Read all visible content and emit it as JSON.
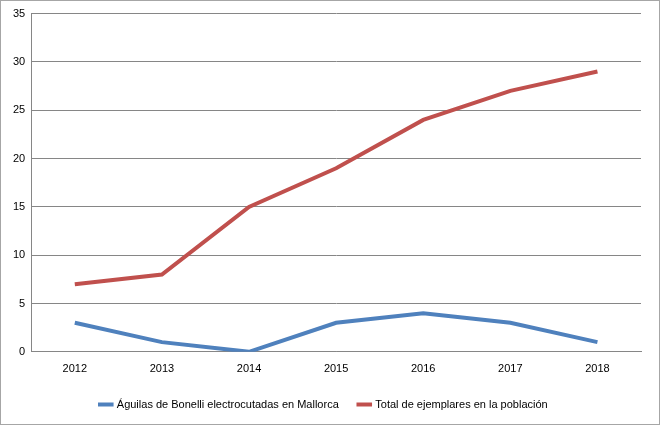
{
  "chart_data": {
    "type": "line",
    "categories": [
      "2012",
      "2013",
      "2014",
      "2015",
      "2016",
      "2017",
      "2018"
    ],
    "series": [
      {
        "name": "Águilas de Bonelli electrocutadas en Mallorca",
        "color": "#4f81bd",
        "values": [
          3,
          1,
          0,
          3,
          4,
          3,
          1
        ]
      },
      {
        "name": "Total de ejemplares en la población",
        "color": "#c0504d",
        "values": [
          7,
          8,
          15,
          19,
          24,
          27,
          29
        ]
      }
    ],
    "ylim": [
      0,
      35
    ],
    "yticks": [
      0,
      5,
      10,
      15,
      20,
      25,
      30,
      35
    ],
    "grid": true,
    "legend": "bottom"
  }
}
